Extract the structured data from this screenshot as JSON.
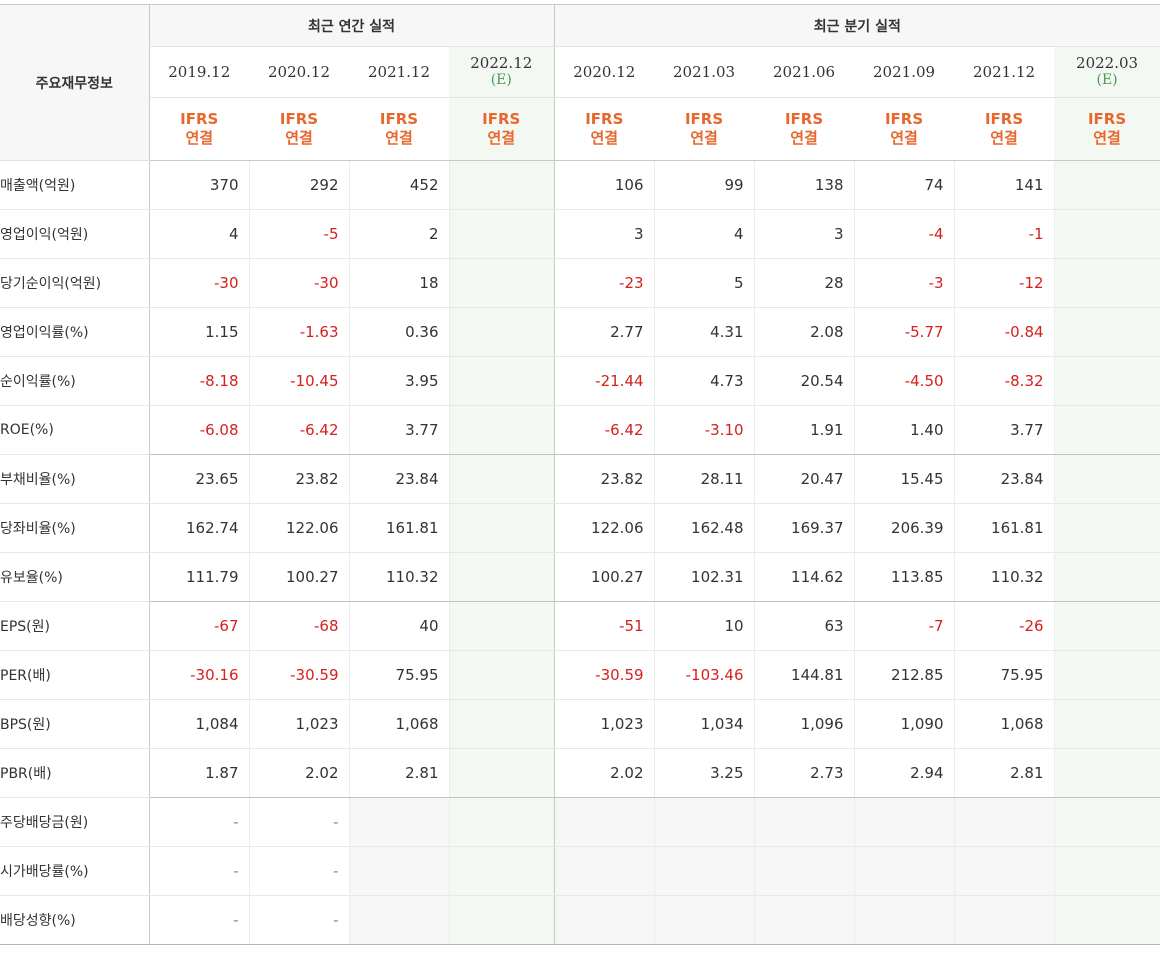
{
  "header": {
    "label": "주요재무정보",
    "annual_group": "최근 연간 실적",
    "quarter_group": "최근 분기 실적"
  },
  "periods": {
    "annual": [
      {
        "date": "2019.12",
        "est": "",
        "accounting": [
          "IFRS",
          "연결"
        ]
      },
      {
        "date": "2020.12",
        "est": "",
        "accounting": [
          "IFRS",
          "연결"
        ]
      },
      {
        "date": "2021.12",
        "est": "",
        "accounting": [
          "IFRS",
          "연결"
        ]
      },
      {
        "date": "2022.12",
        "est": "(E)",
        "accounting": [
          "IFRS",
          "연결"
        ]
      }
    ],
    "quarter": [
      {
        "date": "2020.12",
        "est": "",
        "accounting": [
          "IFRS",
          "연결"
        ]
      },
      {
        "date": "2021.03",
        "est": "",
        "accounting": [
          "IFRS",
          "연결"
        ]
      },
      {
        "date": "2021.06",
        "est": "",
        "accounting": [
          "IFRS",
          "연결"
        ]
      },
      {
        "date": "2021.09",
        "est": "",
        "accounting": [
          "IFRS",
          "연결"
        ]
      },
      {
        "date": "2021.12",
        "est": "",
        "accounting": [
          "IFRS",
          "연결"
        ]
      },
      {
        "date": "2022.03",
        "est": "(E)",
        "accounting": [
          "IFRS",
          "연결"
        ]
      }
    ]
  },
  "rows": [
    {
      "label": "매출액(억원)",
      "annual": [
        "370",
        "292",
        "452",
        ""
      ],
      "quarter": [
        "106",
        "99",
        "138",
        "74",
        "141",
        ""
      ]
    },
    {
      "label": "영업이익(억원)",
      "annual": [
        "4",
        "-5",
        "2",
        ""
      ],
      "quarter": [
        "3",
        "4",
        "3",
        "-4",
        "-1",
        ""
      ]
    },
    {
      "label": "당기순이익(억원)",
      "annual": [
        "-30",
        "-30",
        "18",
        ""
      ],
      "quarter": [
        "-23",
        "5",
        "28",
        "-3",
        "-12",
        ""
      ]
    },
    {
      "label": "영업이익률(%)",
      "annual": [
        "1.15",
        "-1.63",
        "0.36",
        ""
      ],
      "quarter": [
        "2.77",
        "4.31",
        "2.08",
        "-5.77",
        "-0.84",
        ""
      ]
    },
    {
      "label": "순이익률(%)",
      "annual": [
        "-8.18",
        "-10.45",
        "3.95",
        ""
      ],
      "quarter": [
        "-21.44",
        "4.73",
        "20.54",
        "-4.50",
        "-8.32",
        ""
      ]
    },
    {
      "label": "ROE(%)",
      "annual": [
        "-6.08",
        "-6.42",
        "3.77",
        ""
      ],
      "quarter": [
        "-6.42",
        "-3.10",
        "1.91",
        "1.40",
        "3.77",
        ""
      ]
    },
    {
      "label": "부채비율(%)",
      "annual": [
        "23.65",
        "23.82",
        "23.84",
        ""
      ],
      "quarter": [
        "23.82",
        "28.11",
        "20.47",
        "15.45",
        "23.84",
        ""
      ]
    },
    {
      "label": "당좌비율(%)",
      "annual": [
        "162.74",
        "122.06",
        "161.81",
        ""
      ],
      "quarter": [
        "122.06",
        "162.48",
        "169.37",
        "206.39",
        "161.81",
        ""
      ]
    },
    {
      "label": "유보율(%)",
      "annual": [
        "111.79",
        "100.27",
        "110.32",
        ""
      ],
      "quarter": [
        "100.27",
        "102.31",
        "114.62",
        "113.85",
        "110.32",
        ""
      ]
    },
    {
      "label": "EPS(원)",
      "annual": [
        "-67",
        "-68",
        "40",
        ""
      ],
      "quarter": [
        "-51",
        "10",
        "63",
        "-7",
        "-26",
        ""
      ]
    },
    {
      "label": "PER(배)",
      "annual": [
        "-30.16",
        "-30.59",
        "75.95",
        ""
      ],
      "quarter": [
        "-30.59",
        "-103.46",
        "144.81",
        "212.85",
        "75.95",
        ""
      ]
    },
    {
      "label": "BPS(원)",
      "annual": [
        "1,084",
        "1,023",
        "1,068",
        ""
      ],
      "quarter": [
        "1,023",
        "1,034",
        "1,096",
        "1,090",
        "1,068",
        ""
      ]
    },
    {
      "label": "PBR(배)",
      "annual": [
        "1.87",
        "2.02",
        "2.81",
        ""
      ],
      "quarter": [
        "2.02",
        "3.25",
        "2.73",
        "2.94",
        "2.81",
        ""
      ]
    },
    {
      "label": "주당배당금(원)",
      "annual": [
        "-",
        "-",
        "",
        ""
      ],
      "quarter": [
        "",
        "",
        "",
        "",
        "",
        ""
      ]
    },
    {
      "label": "시가배당률(%)",
      "annual": [
        "-",
        "-",
        "",
        ""
      ],
      "quarter": [
        "",
        "",
        "",
        "",
        "",
        ""
      ]
    },
    {
      "label": "배당성향(%)",
      "annual": [
        "-",
        "-",
        "",
        ""
      ],
      "quarter": [
        "",
        "",
        "",
        "",
        "",
        ""
      ]
    }
  ],
  "group_ends": [
    5,
    8,
    12
  ],
  "colors": {
    "negative": "#d6201e",
    "accounting": "#e8672c",
    "estimate": "#4a9a4a"
  }
}
